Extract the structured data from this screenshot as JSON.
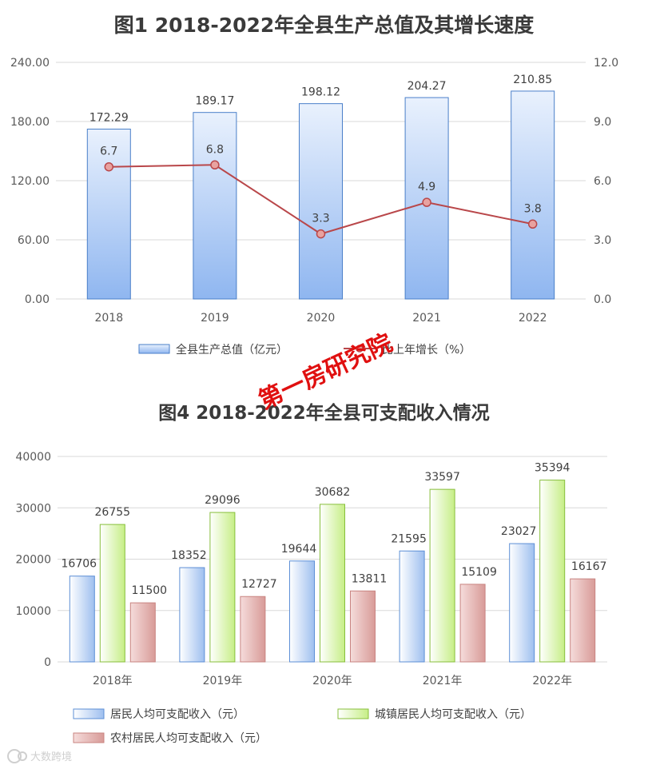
{
  "chart_data": [
    {
      "type": "bar",
      "title": "图1  2018-2022年全县生产总值及其增长速度",
      "categories": [
        "2018",
        "2019",
        "2020",
        "2021",
        "2022"
      ],
      "series": [
        {
          "name": "全县生产总值（亿元）",
          "type": "bar",
          "axis": "left",
          "values": [
            172.29,
            189.17,
            198.12,
            204.27,
            210.85
          ],
          "color": "#9dc3f7"
        },
        {
          "name": "比上年增长（%）",
          "type": "line",
          "axis": "right",
          "values": [
            6.7,
            6.8,
            3.3,
            4.9,
            3.8
          ],
          "color": "#c0504d"
        }
      ],
      "ylim": [
        0,
        240
      ],
      "y_ticks": [
        "0.00",
        "60.00",
        "120.00",
        "180.00",
        "240.00"
      ],
      "y2lim": [
        0,
        12
      ],
      "y2_ticks": [
        "0.0",
        "3.0",
        "6.0",
        "9.0",
        "12.0"
      ],
      "grid": true,
      "legend": "bottom"
    },
    {
      "type": "bar",
      "title": "图4  2018-2022年全县可支配收入情况",
      "categories": [
        "2018年",
        "2019年",
        "2020年",
        "2021年",
        "2022年"
      ],
      "series": [
        {
          "name": "居民人均可支配收入（元）",
          "values": [
            16706,
            18352,
            19644,
            21595,
            23027
          ],
          "color": "#aecaf2"
        },
        {
          "name": "城镇居民人均可支配收入（元）",
          "values": [
            26755,
            29096,
            30682,
            33597,
            35394
          ],
          "color": "#d7f5a4"
        },
        {
          "name": "农村居民人均可支配收入（元）",
          "values": [
            11500,
            12727,
            13811,
            15109,
            16167
          ],
          "color": "#e6b5b3"
        }
      ],
      "ylim": [
        0,
        40000
      ],
      "y_ticks": [
        "0",
        "10000",
        "20000",
        "30000",
        "40000"
      ],
      "grid": true,
      "legend": "bottom"
    }
  ],
  "watermark": "第一房研究院",
  "corner_mark": "大数跨境"
}
